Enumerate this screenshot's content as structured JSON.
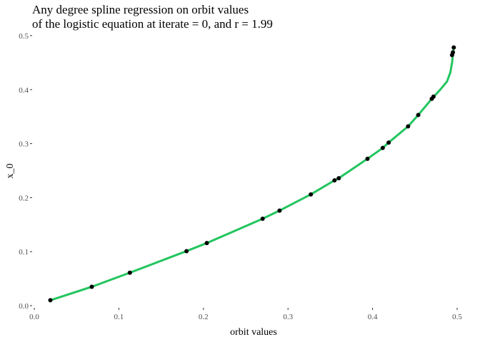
{
  "chart_data": {
    "type": "scatter",
    "title_lines": [
      "Any degree spline regression on orbit values",
      "of the logistic equation at iterate = 0, and r = 1.99"
    ],
    "xlabel": "orbit values",
    "ylabel": "x_0",
    "xlim": [
      0.0,
      0.5
    ],
    "ylim": [
      0.0,
      0.5
    ],
    "x_ticks": [
      "0.0",
      "0.1",
      "0.2",
      "0.3",
      "0.4",
      "0.5"
    ],
    "y_ticks": [
      "0.0",
      "0.1",
      "0.2",
      "0.3",
      "0.4",
      "0.5"
    ],
    "grid": false,
    "legend": "none",
    "points": [
      {
        "x": 0.019,
        "y": 0.01
      },
      {
        "x": 0.068,
        "y": 0.035
      },
      {
        "x": 0.113,
        "y": 0.061
      },
      {
        "x": 0.18,
        "y": 0.101
      },
      {
        "x": 0.204,
        "y": 0.116
      },
      {
        "x": 0.27,
        "y": 0.161
      },
      {
        "x": 0.29,
        "y": 0.176
      },
      {
        "x": 0.327,
        "y": 0.206
      },
      {
        "x": 0.355,
        "y": 0.232
      },
      {
        "x": 0.36,
        "y": 0.236
      },
      {
        "x": 0.394,
        "y": 0.272
      },
      {
        "x": 0.412,
        "y": 0.292
      },
      {
        "x": 0.419,
        "y": 0.302
      },
      {
        "x": 0.442,
        "y": 0.332
      },
      {
        "x": 0.454,
        "y": 0.353
      },
      {
        "x": 0.47,
        "y": 0.383
      },
      {
        "x": 0.472,
        "y": 0.387
      },
      {
        "x": 0.494,
        "y": 0.464
      },
      {
        "x": 0.495,
        "y": 0.469
      },
      {
        "x": 0.496,
        "y": 0.478
      }
    ],
    "fit_curve": {
      "x": [
        0.019,
        0.068,
        0.113,
        0.18,
        0.204,
        0.27,
        0.29,
        0.327,
        0.355,
        0.36,
        0.394,
        0.412,
        0.419,
        0.442,
        0.454,
        0.47,
        0.48,
        0.488,
        0.492,
        0.494,
        0.495,
        0.496
      ],
      "y": [
        0.01,
        0.035,
        0.061,
        0.101,
        0.116,
        0.161,
        0.176,
        0.206,
        0.232,
        0.236,
        0.272,
        0.292,
        0.302,
        0.332,
        0.353,
        0.383,
        0.4,
        0.415,
        0.432,
        0.45,
        0.465,
        0.478
      ]
    },
    "colors": {
      "fit_line": "#22c55e",
      "points": "#000000"
    }
  }
}
